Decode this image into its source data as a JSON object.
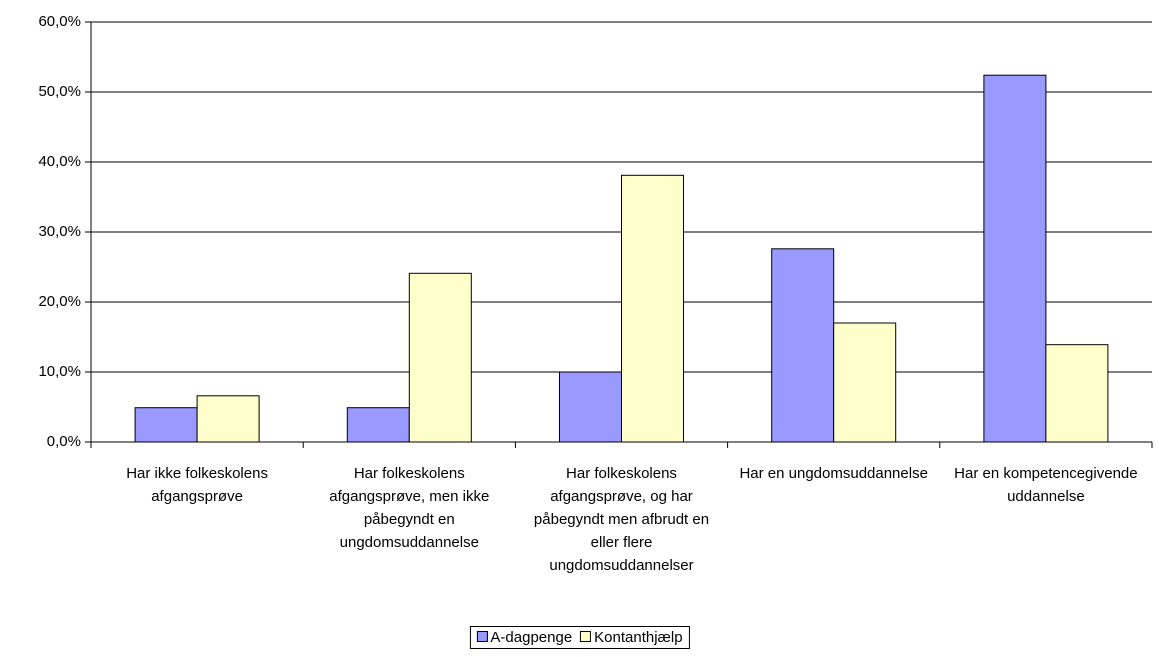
{
  "chart_data": {
    "type": "bar",
    "categories": [
      "Har ikke folkeskolens afgangsprøve",
      "Har folkeskolens afgangsprøve, men ikke påbegyndt en ungdomsuddannelse",
      "Har folkeskolens afgangsprøve, og har påbegyndt men afbrudt en eller flere ungdomsuddannelser",
      "Har en ungdomsuddannelse",
      "Har en kompetencegivende uddannelse"
    ],
    "series": [
      {
        "name": "A-dagpenge",
        "color": "#9999ff",
        "values": [
          4.9,
          4.9,
          10.0,
          27.6,
          52.4
        ]
      },
      {
        "name": "Kontanthjælp",
        "color": "#ffffcc",
        "values": [
          6.6,
          24.1,
          38.1,
          17.0,
          13.9
        ]
      }
    ],
    "ylim": [
      0,
      60
    ],
    "yticks": [
      {
        "value": 0,
        "label": "0,0%"
      },
      {
        "value": 10,
        "label": "10,0%"
      },
      {
        "value": 20,
        "label": "20,0%"
      },
      {
        "value": 30,
        "label": "30,0%"
      },
      {
        "value": 40,
        "label": "40,0%"
      },
      {
        "value": 50,
        "label": "50,0%"
      },
      {
        "value": 60,
        "label": "60,0%"
      }
    ],
    "grid": true,
    "legend": "bottom"
  }
}
